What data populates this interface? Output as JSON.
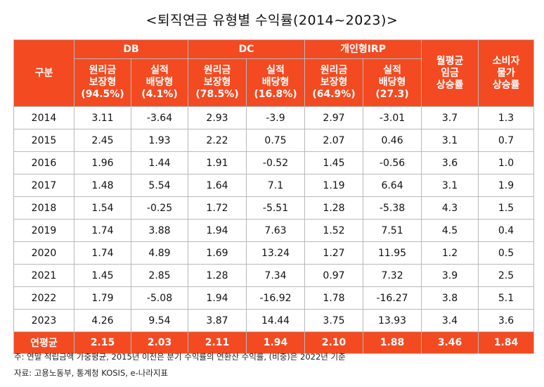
{
  "title": "<퇴직연금 유형별 수익률(2014~2023)>",
  "header": {
    "gubun": "구분",
    "groups": [
      "DB",
      "DC",
      "개인형IRP"
    ],
    "wage": "월평균\n임금\n상승률",
    "cpi": "소비자\n물가\n상승률",
    "subs": [
      "원리금\n보장형\n(94.5%)",
      "실적\n배당형\n(4.1%)",
      "원리금\n보장형\n(78.5%)",
      "실적\n배당형\n(16.8%)",
      "원리금\n보장형\n(64.9%)",
      "실적\n배당형\n(27.3)"
    ]
  },
  "rows": [
    [
      "2014",
      "3.11",
      "-3.64",
      "2.93",
      "-3.9",
      "2.97",
      "-3.01",
      "3.7",
      "1.3"
    ],
    [
      "2015",
      "2.45",
      "1.93",
      "2.22",
      "0.75",
      "2.07",
      "0.46",
      "3.1",
      "0.7"
    ],
    [
      "2016",
      "1.96",
      "1.44",
      "1.91",
      "-0.52",
      "1.45",
      "-0.56",
      "3.6",
      "1.0"
    ],
    [
      "2017",
      "1.48",
      "5.54",
      "1.64",
      "7.1",
      "1.19",
      "6.64",
      "3.1",
      "1.9"
    ],
    [
      "2018",
      "1.54",
      "-0.25",
      "1.72",
      "-5.51",
      "1.28",
      "-5.38",
      "4.3",
      "1.5"
    ],
    [
      "2019",
      "1.74",
      "3.88",
      "1.94",
      "7.63",
      "1.52",
      "7.51",
      "4.5",
      "0.4"
    ],
    [
      "2020",
      "1.74",
      "4.89",
      "1.69",
      "13.24",
      "1.27",
      "11.95",
      "1.2",
      "0.5"
    ],
    [
      "2021",
      "1.45",
      "2.85",
      "1.28",
      "7.34",
      "0.97",
      "7.32",
      "3.9",
      "2.5"
    ],
    [
      "2022",
      "1.79",
      "-5.08",
      "1.94",
      "-16.92",
      "1.78",
      "-16.27",
      "3.8",
      "5.1"
    ],
    [
      "2023",
      "4.26",
      "9.54",
      "3.87",
      "14.44",
      "3.75",
      "13.93",
      "3.4",
      "3.6"
    ]
  ],
  "average": [
    "연평균",
    "2.15",
    "2.03",
    "2.11",
    "1.94",
    "2.10",
    "1.88",
    "3.46",
    "1.84"
  ],
  "notes": {
    "note": "주: 연말 적립금액 가중평균, 2015년 이전은 분기 수익률의 연환산 수익률, (비중)은  2022년 기준",
    "source": "자료: 고용노동부, 통계청 KOSIS, e-나라지표"
  },
  "colors": {
    "header_bg": "#f34a21",
    "header_text": "#ffffff",
    "grid": "#b9b9b9"
  }
}
